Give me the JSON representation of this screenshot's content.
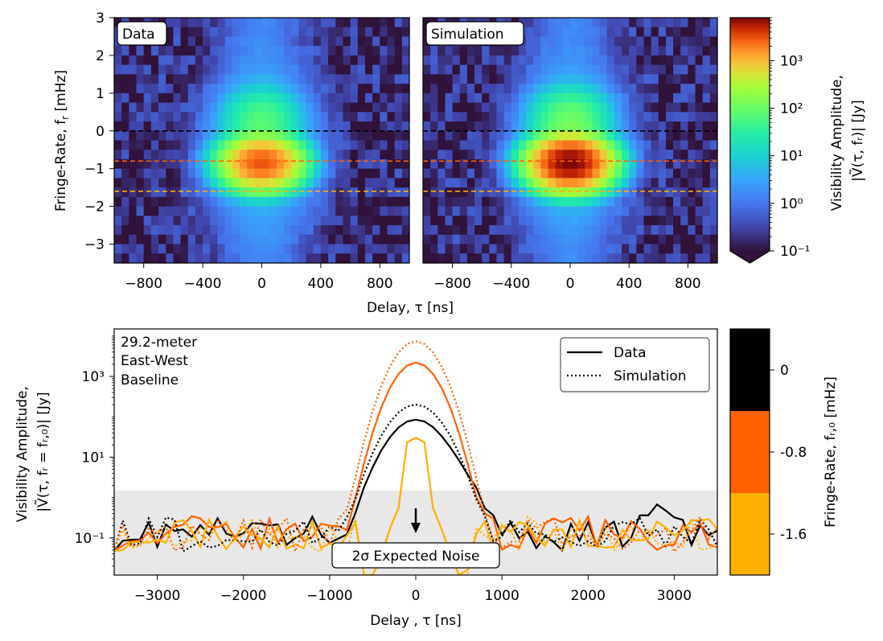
{
  "chart_data": [
    {
      "type": "heatmap",
      "panel_label": "Data",
      "xlim": [
        -1000,
        1000
      ],
      "ylim": [
        -3.5,
        3
      ],
      "xticks": [
        -800,
        -400,
        0,
        400,
        800
      ],
      "yticks": [
        -3,
        -2,
        -1,
        0,
        1,
        2,
        3
      ],
      "ylabel": "Fringe-Rate, 𝑓ᵣ [mHz]",
      "xlabel": "Delay, τ [ns]",
      "peak": {
        "delay": 0,
        "fringe_rate": -0.85,
        "amplitude": 3000
      },
      "secondary_lobe": {
        "delay": 0,
        "fringe_rate": 0.3,
        "amplitude": 60
      },
      "cuts_mHz": [
        0,
        -0.8,
        -1.6
      ]
    },
    {
      "type": "heatmap",
      "panel_label": "Simulation",
      "xlim": [
        -1000,
        1000
      ],
      "ylim": [
        -3.5,
        3
      ],
      "xticks": [
        -800,
        -400,
        0,
        400,
        800
      ],
      "peak": {
        "delay": 0,
        "fringe_rate": -0.85,
        "amplitude": 8000
      },
      "secondary_lobe": {
        "delay": 0,
        "fringe_rate": 0.3,
        "amplitude": 100
      },
      "cuts_mHz": [
        0,
        -0.8,
        -1.6
      ]
    },
    {
      "type": "line",
      "annotation": [
        "29.2-meter",
        "East-West",
        "Baseline"
      ],
      "xlabel": "Delay , τ [ns]",
      "ylabel": [
        "Visibility Amplitude,",
        "|Ṽ(τ, fᵣ = fᵣ,₀)| [Jy]"
      ],
      "xlim": [
        -3500,
        3500
      ],
      "ylim_log": [
        0.012,
        15000
      ],
      "xticks": [
        -3000,
        -2000,
        -1000,
        0,
        1000,
        2000,
        3000
      ],
      "yticks": [
        0.1,
        10,
        1000
      ],
      "noise_band_upper": 1.5,
      "noise_label": "2σ Expected Noise",
      "legend": [
        "Data",
        "Simulation"
      ],
      "legend_position": "top-right",
      "series": [
        {
          "fringe_rate": 0,
          "style": "Data",
          "color": "#000000",
          "peak": 85
        },
        {
          "fringe_rate": -0.8,
          "style": "Data",
          "color": "#ff6000",
          "peak": 2200
        },
        {
          "fringe_rate": -1.6,
          "style": "Data",
          "color": "#ffb000",
          "peak": 30
        },
        {
          "fringe_rate": 0,
          "style": "Simulation",
          "color": "#000000",
          "peak": 200
        },
        {
          "fringe_rate": -0.8,
          "style": "Simulation",
          "color": "#ff6000",
          "peak": 7500
        },
        {
          "fringe_rate": -1.6,
          "style": "Simulation",
          "color": "#ffb000",
          "peak": 30
        }
      ]
    }
  ],
  "colorbar_amplitude": {
    "label": "Visibility Amplitude,",
    "label2": "|Ṽ(τ, fᵣ)| [Jy]",
    "scale": "log",
    "min": 0.1,
    "max": 8000,
    "ticks": [
      "10⁻¹",
      "10⁰",
      "10¹",
      "10²",
      "10³"
    ]
  },
  "colorbar_fringe": {
    "label": "Fringe-Rate, fᵣ,₀ [mHz]",
    "ticks": [
      "0",
      "-0.8",
      "-1.6"
    ],
    "colors": [
      "#000000",
      "#ff6000",
      "#ffb000"
    ]
  },
  "labels": {
    "data": "Data",
    "simulation": "Simulation",
    "delay_top": "Delay, τ [ns]",
    "delay_bottom": "Delay , τ [ns]",
    "ylabel_top": "Fringe-Rate, f",
    "ylabel_top_sub": "r",
    "ylabel_top_unit": " [mHz]",
    "ylabel_bottom1": "Visibility Amplitude,",
    "ylabel_bottom2": "|Ṽ(τ, fᵣ = fᵣ,₀)| [Jy]",
    "cbar1_line1": "Visibility Amplitude,",
    "cbar1_line2": "|Ṽ(τ, fᵣ)| [Jy]",
    "cbar2": "Fringe-Rate, fᵣ,₀ [mHz]",
    "baseline1": "29.2-meter",
    "baseline2": "East-West",
    "baseline3": "Baseline",
    "noise": "2σ Expected Noise",
    "legend_data": "Data",
    "legend_sim": "Simulation"
  }
}
